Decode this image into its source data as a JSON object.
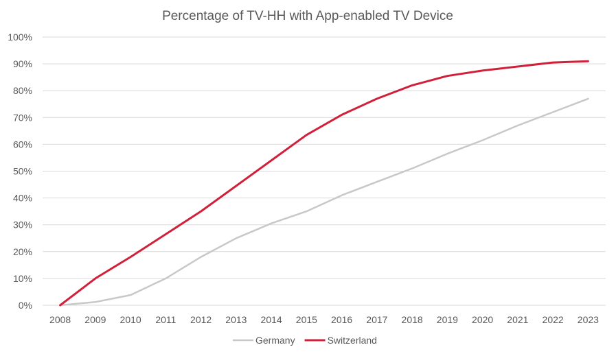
{
  "chart_data": {
    "type": "line",
    "title": "Percentage of TV-HH with App-enabled TV Device",
    "xlabel": "",
    "ylabel": "",
    "x": [
      "2008",
      "2009",
      "2010",
      "2011",
      "2012",
      "2013",
      "2014",
      "2015",
      "2016",
      "2017",
      "2018",
      "2019",
      "2020",
      "2021",
      "2022",
      "2023"
    ],
    "ylim": [
      0,
      100
    ],
    "yticks": [
      "0%",
      "10%",
      "20%",
      "30%",
      "40%",
      "50%",
      "60%",
      "70%",
      "80%",
      "90%",
      "100%"
    ],
    "grid": true,
    "legend_position": "bottom",
    "series": [
      {
        "name": "Germany",
        "color": "#c8c8c8",
        "values": [
          0,
          1.2,
          3.8,
          10,
          18,
          25,
          30.5,
          35,
          41,
          46,
          51,
          56.5,
          61.5,
          67,
          72,
          77
        ]
      },
      {
        "name": "Switzerland",
        "color": "#d0203a",
        "values": [
          0,
          10,
          18,
          26.5,
          35,
          44.5,
          54,
          63.5,
          71,
          77,
          82,
          85.5,
          87.5,
          89,
          90.5,
          91
        ]
      }
    ]
  }
}
